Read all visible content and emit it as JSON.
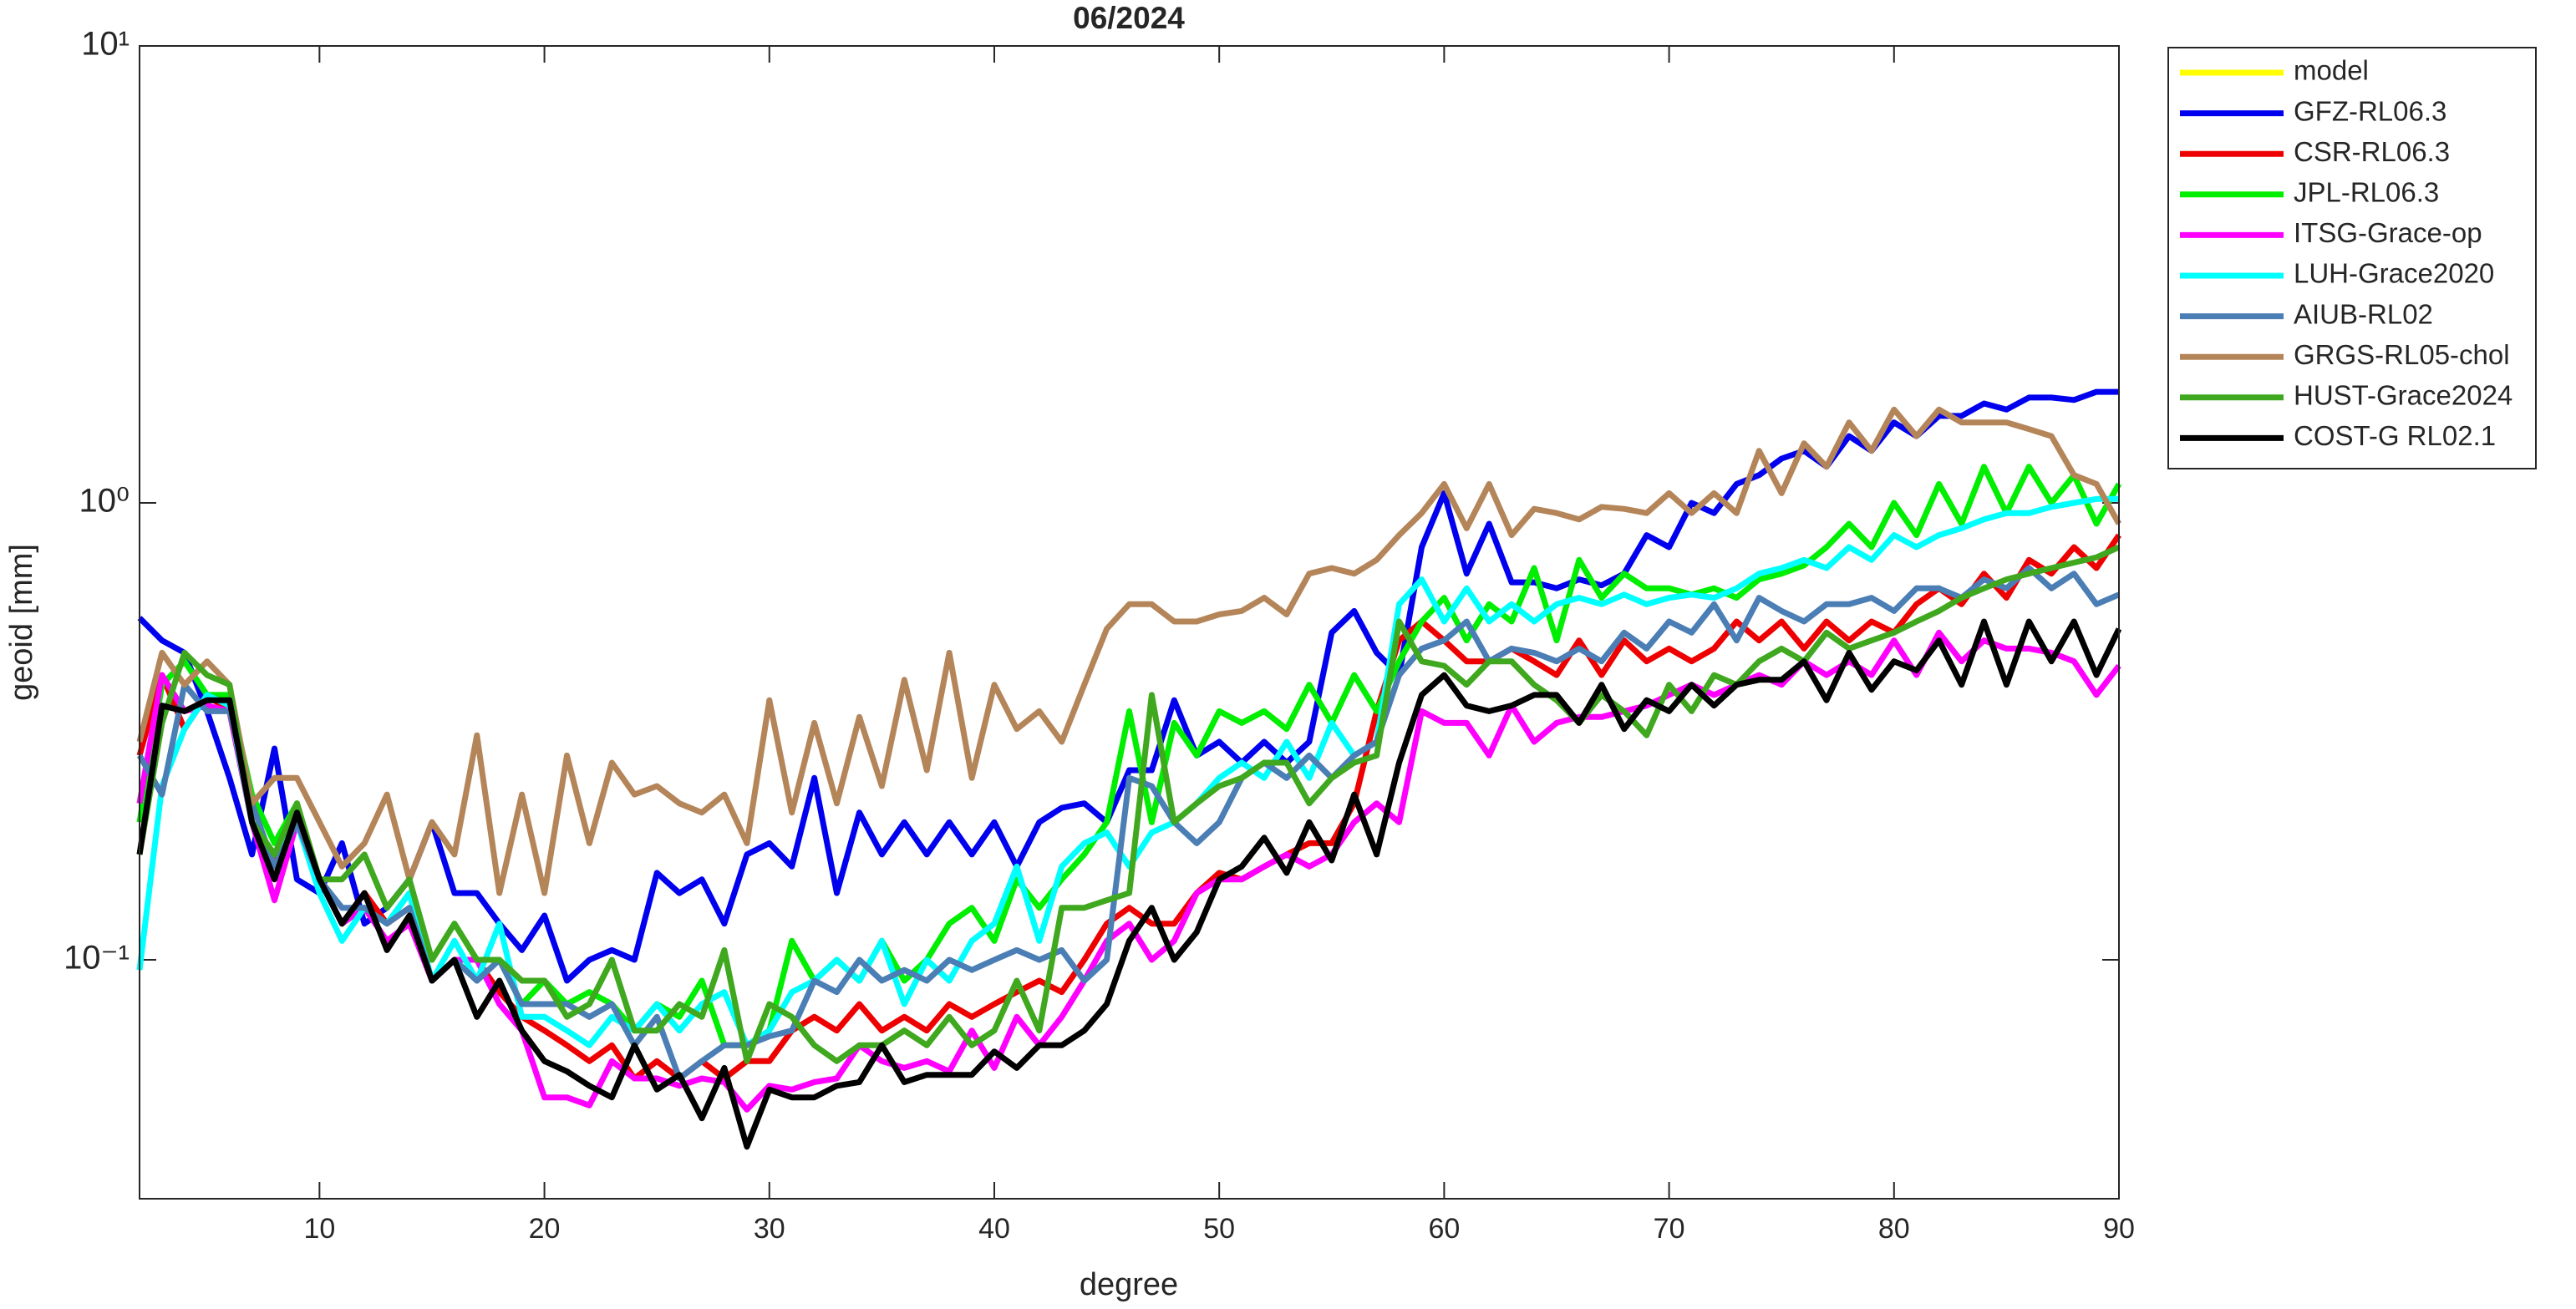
{
  "chart_data": {
    "type": "line",
    "title": "06/2024",
    "xlabel": "degree",
    "ylabel": "geoid [mm]",
    "yscale": "log",
    "xlim": [
      2,
      90
    ],
    "ylim": [
      0.03,
      10
    ],
    "xticks": [
      10,
      20,
      30,
      40,
      50,
      60,
      70,
      80,
      90
    ],
    "yticks": [
      {
        "value": 0.1,
        "label": "10⁻¹"
      },
      {
        "value": 1,
        "label": "10⁰"
      },
      {
        "value": 10,
        "label": "10¹"
      }
    ],
    "legend": "northeastoutside",
    "box": true,
    "x": [
      2,
      3,
      4,
      5,
      6,
      7,
      8,
      9,
      10,
      11,
      12,
      13,
      14,
      15,
      16,
      17,
      18,
      19,
      20,
      21,
      22,
      23,
      24,
      25,
      26,
      27,
      28,
      29,
      30,
      31,
      32,
      33,
      34,
      35,
      36,
      37,
      38,
      39,
      40,
      41,
      42,
      43,
      44,
      45,
      46,
      47,
      48,
      49,
      50,
      51,
      52,
      53,
      54,
      55,
      56,
      57,
      58,
      59,
      60,
      61,
      62,
      63,
      64,
      65,
      66,
      67,
      68,
      69,
      70,
      71,
      72,
      73,
      74,
      75,
      76,
      77,
      78,
      79,
      80,
      81,
      82,
      83,
      84,
      85,
      86,
      87,
      88,
      89,
      90
    ],
    "series": [
      {
        "name": "model",
        "color": "#ffff00",
        "values": [
          null,
          null,
          null,
          null,
          null,
          null,
          null,
          null,
          null,
          null,
          null,
          null,
          null,
          null,
          null,
          null,
          null,
          null,
          null,
          null,
          null,
          null,
          null,
          null,
          null,
          null,
          null,
          null,
          null,
          null,
          null,
          null,
          null,
          null,
          null,
          null,
          null,
          null,
          null,
          null,
          null,
          null,
          null,
          null,
          null,
          null,
          null,
          null,
          null,
          null,
          null,
          null,
          null,
          null,
          null,
          null,
          null,
          null,
          null,
          null,
          null,
          null,
          null,
          null,
          null,
          null,
          null,
          null,
          null,
          null,
          null,
          null,
          null,
          null,
          null,
          null,
          null,
          null,
          null,
          null,
          null,
          null,
          null,
          null,
          null,
          null,
          null,
          null,
          null
        ]
      },
      {
        "name": "GFZ-RL06.3",
        "color": "#0000ee",
        "values": [
          0.56,
          0.5,
          0.47,
          0.35,
          0.25,
          0.17,
          0.29,
          0.15,
          0.14,
          0.18,
          0.12,
          0.13,
          0.15,
          0.2,
          0.14,
          0.14,
          0.12,
          0.105,
          0.125,
          0.09,
          0.1,
          0.105,
          0.1,
          0.155,
          0.14,
          0.15,
          0.12,
          0.17,
          0.18,
          0.16,
          0.25,
          0.14,
          0.21,
          0.17,
          0.2,
          0.17,
          0.2,
          0.17,
          0.2,
          0.16,
          0.2,
          0.215,
          0.22,
          0.2,
          0.26,
          0.26,
          0.37,
          0.28,
          0.3,
          0.27,
          0.3,
          0.27,
          0.3,
          0.52,
          0.58,
          0.47,
          0.42,
          0.8,
          1.05,
          0.7,
          0.9,
          0.67,
          0.67,
          0.65,
          0.68,
          0.66,
          0.7,
          0.85,
          0.8,
          1.0,
          0.95,
          1.1,
          1.15,
          1.25,
          1.3,
          1.2,
          1.4,
          1.3,
          1.5,
          1.4,
          1.55,
          1.55,
          1.65,
          1.6,
          1.7,
          1.7,
          1.68,
          1.75,
          1.75
        ]
      },
      {
        "name": "CSR-RL06.3",
        "color": "#ee0000",
        "values": [
          0.28,
          0.42,
          0.32,
          0.38,
          0.35,
          0.2,
          0.16,
          0.22,
          0.15,
          0.12,
          0.14,
          0.12,
          0.13,
          0.09,
          0.1,
          0.1,
          0.085,
          0.075,
          0.07,
          0.065,
          0.06,
          0.065,
          0.055,
          0.06,
          0.055,
          0.06,
          0.055,
          0.06,
          0.06,
          0.07,
          0.075,
          0.07,
          0.08,
          0.07,
          0.075,
          0.07,
          0.08,
          0.075,
          0.08,
          0.085,
          0.09,
          0.085,
          0.1,
          0.12,
          0.13,
          0.12,
          0.12,
          0.14,
          0.155,
          0.15,
          0.16,
          0.17,
          0.18,
          0.18,
          0.22,
          0.35,
          0.5,
          0.55,
          0.5,
          0.45,
          0.45,
          0.48,
          0.45,
          0.42,
          0.5,
          0.42,
          0.5,
          0.45,
          0.48,
          0.45,
          0.48,
          0.55,
          0.5,
          0.55,
          0.48,
          0.55,
          0.5,
          0.55,
          0.52,
          0.6,
          0.65,
          0.6,
          0.7,
          0.62,
          0.75,
          0.7,
          0.8,
          0.72,
          0.85
        ]
      },
      {
        "name": "JPL-RL06.3",
        "color": "#00ee00",
        "values": [
          0.2,
          0.4,
          0.45,
          0.38,
          0.38,
          0.23,
          0.18,
          0.22,
          0.15,
          0.12,
          0.13,
          0.12,
          0.14,
          0.1,
          0.12,
          0.1,
          0.1,
          0.08,
          0.09,
          0.08,
          0.085,
          0.08,
          0.07,
          0.08,
          0.075,
          0.09,
          0.065,
          0.065,
          0.07,
          0.11,
          0.09,
          0.1,
          0.09,
          0.11,
          0.09,
          0.1,
          0.12,
          0.13,
          0.11,
          0.15,
          0.13,
          0.15,
          0.17,
          0.2,
          0.35,
          0.2,
          0.33,
          0.28,
          0.35,
          0.33,
          0.35,
          0.32,
          0.4,
          0.33,
          0.42,
          0.35,
          0.45,
          0.55,
          0.62,
          0.5,
          0.6,
          0.55,
          0.72,
          0.5,
          0.75,
          0.62,
          0.7,
          0.65,
          0.65,
          0.63,
          0.65,
          0.62,
          0.68,
          0.7,
          0.73,
          0.8,
          0.9,
          0.8,
          1.0,
          0.85,
          1.1,
          0.9,
          1.2,
          0.95,
          1.2,
          1.0,
          1.15,
          0.9,
          1.1
        ]
      },
      {
        "name": "ITSG-Grace-op",
        "color": "#ff00ff",
        "values": [
          0.22,
          0.42,
          0.35,
          0.36,
          0.35,
          0.2,
          0.135,
          0.2,
          0.15,
          0.12,
          0.13,
          0.11,
          0.12,
          0.09,
          0.1,
          0.1,
          0.08,
          0.07,
          0.05,
          0.05,
          0.048,
          0.06,
          0.055,
          0.055,
          0.053,
          0.055,
          0.054,
          0.047,
          0.053,
          0.052,
          0.054,
          0.055,
          0.065,
          0.06,
          0.058,
          0.06,
          0.057,
          0.07,
          0.058,
          0.075,
          0.065,
          0.075,
          0.09,
          0.11,
          0.12,
          0.1,
          0.11,
          0.14,
          0.15,
          0.15,
          0.16,
          0.17,
          0.16,
          0.17,
          0.2,
          0.22,
          0.2,
          0.35,
          0.33,
          0.33,
          0.28,
          0.36,
          0.3,
          0.33,
          0.34,
          0.34,
          0.35,
          0.36,
          0.38,
          0.4,
          0.38,
          0.4,
          0.42,
          0.4,
          0.45,
          0.42,
          0.45,
          0.42,
          0.5,
          0.42,
          0.52,
          0.45,
          0.5,
          0.48,
          0.48,
          0.47,
          0.45,
          0.38,
          0.44
        ]
      },
      {
        "name": "LUH-Grace2020",
        "color": "#00ffff",
        "values": [
          0.095,
          0.24,
          0.32,
          0.38,
          0.36,
          0.2,
          0.17,
          0.2,
          0.14,
          0.11,
          0.13,
          0.12,
          0.14,
          0.09,
          0.11,
          0.09,
          0.12,
          0.075,
          0.075,
          0.07,
          0.065,
          0.075,
          0.07,
          0.08,
          0.07,
          0.08,
          0.085,
          0.065,
          0.07,
          0.085,
          0.09,
          0.1,
          0.09,
          0.11,
          0.08,
          0.1,
          0.09,
          0.11,
          0.12,
          0.16,
          0.11,
          0.16,
          0.18,
          0.19,
          0.16,
          0.19,
          0.2,
          0.22,
          0.25,
          0.27,
          0.25,
          0.3,
          0.25,
          0.33,
          0.28,
          0.3,
          0.6,
          0.68,
          0.55,
          0.65,
          0.55,
          0.6,
          0.55,
          0.6,
          0.62,
          0.6,
          0.63,
          0.6,
          0.62,
          0.63,
          0.62,
          0.65,
          0.7,
          0.72,
          0.75,
          0.72,
          0.8,
          0.75,
          0.85,
          0.8,
          0.85,
          0.88,
          0.92,
          0.95,
          0.95,
          0.98,
          1.0,
          1.02,
          1.02
        ]
      },
      {
        "name": "AIUB-RL02",
        "color": "#4a7eb4",
        "values": [
          0.28,
          0.23,
          0.4,
          0.35,
          0.35,
          0.22,
          0.16,
          0.2,
          0.15,
          0.13,
          0.13,
          0.12,
          0.13,
          0.09,
          0.1,
          0.09,
          0.1,
          0.08,
          0.08,
          0.08,
          0.075,
          0.08,
          0.065,
          0.075,
          0.055,
          0.06,
          0.065,
          0.065,
          0.068,
          0.07,
          0.09,
          0.085,
          0.1,
          0.09,
          0.095,
          0.09,
          0.1,
          0.095,
          0.1,
          0.105,
          0.1,
          0.105,
          0.09,
          0.1,
          0.25,
          0.24,
          0.2,
          0.18,
          0.2,
          0.25,
          0.27,
          0.25,
          0.28,
          0.25,
          0.28,
          0.3,
          0.42,
          0.48,
          0.5,
          0.55,
          0.45,
          0.48,
          0.47,
          0.45,
          0.48,
          0.45,
          0.52,
          0.48,
          0.55,
          0.52,
          0.6,
          0.5,
          0.62,
          0.58,
          0.55,
          0.6,
          0.6,
          0.62,
          0.58,
          0.65,
          0.65,
          0.62,
          0.68,
          0.65,
          0.72,
          0.65,
          0.7,
          0.6,
          0.63
        ]
      },
      {
        "name": "GRGS-RL05-chol",
        "color": "#b5855a",
        "values": [
          0.3,
          0.47,
          0.4,
          0.45,
          0.4,
          0.22,
          0.25,
          0.25,
          0.2,
          0.16,
          0.18,
          0.23,
          0.15,
          0.2,
          0.17,
          0.31,
          0.14,
          0.23,
          0.14,
          0.28,
          0.18,
          0.27,
          0.23,
          0.24,
          0.22,
          0.21,
          0.23,
          0.18,
          0.37,
          0.21,
          0.33,
          0.22,
          0.34,
          0.24,
          0.41,
          0.26,
          0.47,
          0.25,
          0.4,
          0.32,
          0.35,
          0.3,
          0.4,
          0.53,
          0.6,
          0.6,
          0.55,
          0.55,
          0.57,
          0.58,
          0.62,
          0.57,
          0.7,
          0.72,
          0.7,
          0.75,
          0.85,
          0.95,
          1.1,
          0.88,
          1.1,
          0.85,
          0.97,
          0.95,
          0.92,
          0.98,
          0.97,
          0.95,
          1.05,
          0.95,
          1.05,
          0.95,
          1.3,
          1.05,
          1.35,
          1.2,
          1.5,
          1.3,
          1.6,
          1.4,
          1.6,
          1.5,
          1.5,
          1.5,
          1.45,
          1.4,
          1.15,
          1.1,
          0.9
        ]
      },
      {
        "name": "HUST-Grace2024",
        "color": "#3fa81e",
        "values": [
          0.17,
          0.33,
          0.47,
          0.42,
          0.4,
          0.2,
          0.17,
          0.22,
          0.15,
          0.15,
          0.17,
          0.13,
          0.15,
          0.1,
          0.12,
          0.1,
          0.1,
          0.09,
          0.09,
          0.075,
          0.08,
          0.1,
          0.07,
          0.07,
          0.08,
          0.075,
          0.105,
          0.06,
          0.08,
          0.075,
          0.065,
          0.06,
          0.065,
          0.065,
          0.07,
          0.065,
          0.075,
          0.065,
          0.07,
          0.09,
          0.07,
          0.13,
          0.13,
          0.135,
          0.14,
          0.38,
          0.2,
          0.22,
          0.24,
          0.25,
          0.27,
          0.27,
          0.22,
          0.25,
          0.27,
          0.28,
          0.55,
          0.45,
          0.44,
          0.4,
          0.45,
          0.45,
          0.4,
          0.37,
          0.33,
          0.38,
          0.35,
          0.31,
          0.4,
          0.35,
          0.42,
          0.4,
          0.45,
          0.48,
          0.45,
          0.52,
          0.48,
          0.5,
          0.52,
          0.55,
          0.58,
          0.62,
          0.65,
          0.68,
          0.7,
          0.72,
          0.74,
          0.76,
          0.8
        ]
      },
      {
        "name": "COST-G RL02.1",
        "color": "#000000",
        "values": [
          0.17,
          0.36,
          0.35,
          0.37,
          0.37,
          0.2,
          0.15,
          0.21,
          0.15,
          0.12,
          0.14,
          0.105,
          0.125,
          0.09,
          0.1,
          0.075,
          0.09,
          0.07,
          0.06,
          0.057,
          0.053,
          0.05,
          0.065,
          0.052,
          0.056,
          0.045,
          0.058,
          0.039,
          0.052,
          0.05,
          0.05,
          0.053,
          0.054,
          0.065,
          0.054,
          0.056,
          0.056,
          0.056,
          0.063,
          0.058,
          0.065,
          0.065,
          0.07,
          0.08,
          0.11,
          0.13,
          0.1,
          0.115,
          0.15,
          0.16,
          0.185,
          0.155,
          0.2,
          0.165,
          0.23,
          0.17,
          0.27,
          0.38,
          0.42,
          0.36,
          0.35,
          0.36,
          0.38,
          0.38,
          0.33,
          0.4,
          0.32,
          0.37,
          0.35,
          0.4,
          0.36,
          0.4,
          0.41,
          0.41,
          0.45,
          0.37,
          0.47,
          0.39,
          0.45,
          0.43,
          0.5,
          0.4,
          0.55,
          0.4,
          0.55,
          0.45,
          0.55,
          0.42,
          0.53
        ]
      }
    ]
  }
}
